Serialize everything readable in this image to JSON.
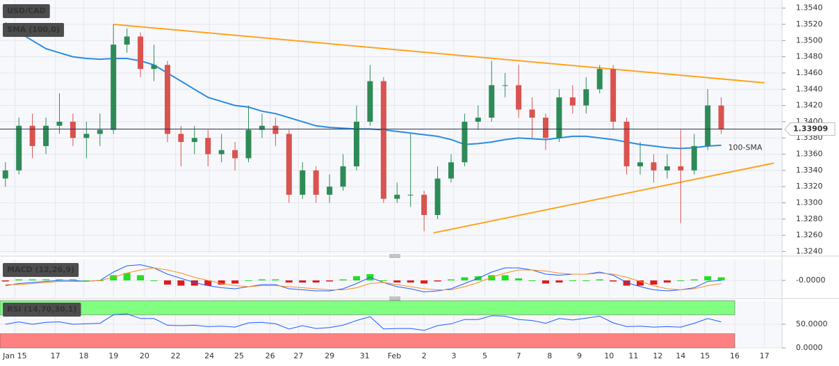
{
  "chart_data": [
    {
      "type": "candlestick",
      "title": "USD/CAD",
      "xlim": [
        -0.4,
        57.5
      ],
      "ylim": [
        1.3237,
        1.355
      ],
      "yticks": [
        {
          "value": 1.324,
          "label": "1.3240"
        },
        {
          "value": 1.326,
          "label": "1.3260"
        },
        {
          "value": 1.328,
          "label": "1.3280"
        },
        {
          "value": 1.33,
          "label": "1.3300"
        },
        {
          "value": 1.332,
          "label": "1.3320"
        },
        {
          "value": 1.334,
          "label": "1.3340"
        },
        {
          "value": 1.336,
          "label": "1.3360"
        },
        {
          "value": 1.338,
          "label": "1.3380"
        },
        {
          "value": 1.34,
          "label": "1.3400"
        },
        {
          "value": 1.342,
          "label": "1.3420"
        },
        {
          "value": 1.344,
          "label": "1.3440"
        },
        {
          "value": 1.346,
          "label": "1.3460"
        },
        {
          "value": 1.348,
          "label": "1.3480"
        },
        {
          "value": 1.35,
          "label": "1.3500"
        },
        {
          "value": 1.352,
          "label": "1.3520"
        },
        {
          "value": 1.354,
          "label": "1.3540"
        }
      ],
      "grid": true,
      "up_color": "#2e8b57",
      "down_color": "#d9534f",
      "open": [
        1.333,
        1.334,
        1.3395,
        1.337,
        1.3395,
        1.34,
        1.338,
        1.3385,
        1.339,
        1.3495,
        1.3505,
        1.3465,
        1.347,
        1.3385,
        1.3375,
        1.338,
        1.336,
        1.3365,
        1.3355,
        1.339,
        1.3395,
        1.3385,
        1.331,
        1.334,
        1.331,
        1.332,
        1.3345,
        1.34,
        1.345,
        1.3305,
        1.331,
        1.331,
        1.3285,
        1.333,
        1.335,
        1.34,
        1.3405,
        1.3445,
        1.3445,
        1.3415,
        1.3405,
        1.338,
        1.343,
        1.342,
        1.344,
        1.3465,
        1.34,
        1.3345,
        1.335,
        1.334,
        1.3345,
        1.334,
        1.337,
        1.342
      ],
      "high": [
        1.335,
        1.3405,
        1.341,
        1.3405,
        1.3435,
        1.341,
        1.34,
        1.341,
        1.352,
        1.3515,
        1.351,
        1.3495,
        1.3475,
        1.3395,
        1.3395,
        1.339,
        1.3385,
        1.3375,
        1.342,
        1.341,
        1.3405,
        1.339,
        1.335,
        1.3345,
        1.3335,
        1.336,
        1.342,
        1.347,
        1.3455,
        1.3325,
        1.3385,
        1.3315,
        1.3345,
        1.336,
        1.341,
        1.342,
        1.3475,
        1.346,
        1.347,
        1.343,
        1.341,
        1.344,
        1.3445,
        1.3455,
        1.347,
        1.347,
        1.3405,
        1.3375,
        1.336,
        1.336,
        1.339,
        1.3385,
        1.344,
        1.343
      ],
      "low": [
        1.332,
        1.3335,
        1.3355,
        1.336,
        1.3385,
        1.337,
        1.3355,
        1.337,
        1.3385,
        1.3485,
        1.3455,
        1.345,
        1.3375,
        1.3345,
        1.336,
        1.3345,
        1.335,
        1.334,
        1.335,
        1.338,
        1.337,
        1.33,
        1.3305,
        1.33,
        1.33,
        1.3315,
        1.334,
        1.3395,
        1.33,
        1.33,
        1.3295,
        1.3265,
        1.328,
        1.3325,
        1.3345,
        1.339,
        1.34,
        1.343,
        1.3405,
        1.338,
        1.3365,
        1.3375,
        1.341,
        1.341,
        1.3435,
        1.339,
        1.3335,
        1.3335,
        1.3325,
        1.333,
        1.3275,
        1.3335,
        1.3365,
        1.3385
      ],
      "close": [
        1.334,
        1.3395,
        1.337,
        1.3395,
        1.34,
        1.338,
        1.3385,
        1.339,
        1.3495,
        1.3505,
        1.3465,
        1.347,
        1.3385,
        1.3375,
        1.338,
        1.336,
        1.3365,
        1.3355,
        1.339,
        1.3395,
        1.3385,
        1.331,
        1.334,
        1.331,
        1.332,
        1.3345,
        1.34,
        1.345,
        1.3305,
        1.331,
        1.331,
        1.3285,
        1.333,
        1.335,
        1.34,
        1.3405,
        1.3445,
        1.3445,
        1.3415,
        1.3405,
        1.338,
        1.343,
        1.342,
        1.344,
        1.3465,
        1.34,
        1.3345,
        1.335,
        1.334,
        1.3345,
        1.334,
        1.337,
        1.342,
        1.3391
      ],
      "sma": {
        "name": "SMA (100,0)",
        "label": "100-SMA",
        "color": "#2a8be0",
        "values": [
          1.3522,
          1.351,
          1.35,
          1.349,
          1.3485,
          1.348,
          1.3478,
          1.3477,
          1.3478,
          1.3478,
          1.3475,
          1.347,
          1.346,
          1.345,
          1.344,
          1.343,
          1.3425,
          1.342,
          1.3418,
          1.3413,
          1.341,
          1.3405,
          1.34,
          1.3395,
          1.3393,
          1.3392,
          1.3391,
          1.3391,
          1.339,
          1.3388,
          1.3386,
          1.3384,
          1.3382,
          1.3378,
          1.3372,
          1.3373,
          1.3375,
          1.3378,
          1.338,
          1.3379,
          1.3378,
          1.338,
          1.3382,
          1.3382,
          1.338,
          1.3378,
          1.3375,
          1.3372,
          1.337,
          1.3368,
          1.3367,
          1.3368,
          1.337,
          1.3371
        ]
      },
      "trendlines": [
        {
          "color": "#ffa31a",
          "x": [
            8,
            56.2
          ],
          "y": [
            1.352,
            1.3448
          ]
        },
        {
          "color": "#ffa31a",
          "x": [
            31.7,
            56.9
          ],
          "y": [
            1.3263,
            1.3349
          ]
        }
      ],
      "last_price": 1.33909
    },
    {
      "type": "macd",
      "title": "MACD (12,26,9)",
      "ylim": [
        -0.0016,
        0.002
      ],
      "yticks": [
        {
          "value": 0,
          "label": "-0.0000"
        }
      ],
      "histogram": {
        "up_color": "#22e022",
        "down_color": "#e01b1b",
        "values": [
          -0.0001,
          0.0001,
          0.0001,
          0.0001,
          0.0001,
          0.0001,
          0,
          0,
          0.0005,
          0.0007,
          0.0005,
          0,
          -0.0004,
          -0.0005,
          -0.0005,
          -0.0005,
          -0.0004,
          -0.0003,
          0,
          0.0001,
          0.0001,
          -0.0002,
          -0.0002,
          -0.0002,
          -0.0001,
          0.0001,
          0.0004,
          0.0006,
          0,
          -0.0002,
          -0.0002,
          -0.0003,
          -0.0001,
          0.0001,
          0.0003,
          0.0004,
          0.0005,
          0.0005,
          0.0002,
          0,
          -0.0003,
          -0.0002,
          0,
          0,
          0.0001,
          -0.0001,
          -0.0005,
          -0.0005,
          -0.0004,
          -0.0002,
          0,
          0.0001,
          0.0004,
          0.0003
        ]
      },
      "lines": [
        {
          "color": "#1e5cff",
          "values": [
            -0.0005,
            -0.0003,
            -0.0002,
            -0.0001,
            0,
            0,
            -0.0001,
            0,
            0.0008,
            0.0014,
            0.0015,
            0.0012,
            0.0006,
            0.0002,
            -0.0002,
            -0.0005,
            -0.0007,
            -0.0008,
            -0.0006,
            -0.0004,
            -0.0004,
            -0.0008,
            -0.0009,
            -0.001,
            -0.001,
            -0.0008,
            -0.0003,
            0.0003,
            -0.0002,
            -0.0006,
            -0.0008,
            -0.0011,
            -0.001,
            -0.0008,
            -0.0003,
            0.0002,
            0.0008,
            0.0012,
            0.0012,
            0.001,
            0.0006,
            0.0005,
            0.0006,
            0.0006,
            0.0008,
            0.0005,
            -0.0002,
            -0.0006,
            -0.0009,
            -0.001,
            -0.0009,
            -0.0007,
            -0.0001,
            0
          ]
        },
        {
          "color": "#ff8a1a",
          "values": [
            -0.0004,
            -0.0004,
            -0.0003,
            -0.0002,
            -0.0001,
            -0.0001,
            -0.0001,
            0,
            0.0003,
            0.0007,
            0.001,
            0.0012,
            0.001,
            0.0007,
            0.0003,
            0,
            -0.0003,
            -0.0005,
            -0.0006,
            -0.0005,
            -0.0005,
            -0.0006,
            -0.0007,
            -0.0008,
            -0.0009,
            -0.0009,
            -0.0007,
            -0.0003,
            -0.0002,
            -0.0004,
            -0.0006,
            -0.0008,
            -0.0009,
            -0.0009,
            -0.0006,
            -0.0002,
            0.0003,
            0.0007,
            0.001,
            0.001,
            0.0009,
            0.0007,
            0.0006,
            0.0006,
            0.0007,
            0.0006,
            0.0003,
            -0.0001,
            -0.0005,
            -0.0008,
            -0.0009,
            -0.0008,
            -0.0005,
            -0.0003
          ]
        }
      ]
    },
    {
      "type": "rsi",
      "title": "RSI (14,70,30,1)",
      "ylim": [
        0,
        100
      ],
      "yticks": [
        {
          "value": 50,
          "label": "50.0000"
        },
        {
          "value": 0,
          "label": "0.0000"
        }
      ],
      "bands": [
        {
          "from": 70,
          "to": 100,
          "color": "#80ff80"
        },
        {
          "from": 0,
          "to": 30,
          "color": "#ff8080"
        }
      ],
      "line": {
        "color": "#1e5cff",
        "values": [
          50,
          55,
          50,
          54,
          55,
          50,
          51,
          52,
          70,
          72,
          62,
          62,
          48,
          47,
          48,
          45,
          46,
          44,
          53,
          54,
          51,
          40,
          47,
          41,
          43,
          48,
          58,
          66,
          40,
          41,
          41,
          37,
          47,
          51,
          60,
          60,
          68,
          67,
          60,
          58,
          52,
          62,
          59,
          63,
          67,
          53,
          45,
          46,
          44,
          45,
          44,
          52,
          62,
          55
        ]
      },
      "xticks": [
        {
          "value": 0.7,
          "label": "Jan 15"
        },
        {
          "value": 3.7,
          "label": "17"
        },
        {
          "value": 5.8,
          "label": "18"
        },
        {
          "value": 8.0,
          "label": "19"
        },
        {
          "value": 10.3,
          "label": "20"
        },
        {
          "value": 12.6,
          "label": "22"
        },
        {
          "value": 15.1,
          "label": "24"
        },
        {
          "value": 17.3,
          "label": "25"
        },
        {
          "value": 19.6,
          "label": "26"
        },
        {
          "value": 21.7,
          "label": "27"
        },
        {
          "value": 24.0,
          "label": "29"
        },
        {
          "value": 26.6,
          "label": "31"
        },
        {
          "value": 28.8,
          "label": "Feb"
        },
        {
          "value": 31.0,
          "label": "2"
        },
        {
          "value": 33.2,
          "label": "3"
        },
        {
          "value": 35.5,
          "label": "5"
        },
        {
          "value": 38.0,
          "label": "7"
        },
        {
          "value": 40.3,
          "label": "8"
        },
        {
          "value": 42.5,
          "label": "9"
        },
        {
          "value": 44.7,
          "label": "10"
        },
        {
          "value": 46.5,
          "label": "11"
        },
        {
          "value": 48.3,
          "label": "12"
        },
        {
          "value": 50.0,
          "label": "14"
        },
        {
          "value": 51.8,
          "label": "15"
        },
        {
          "value": 54.0,
          "label": "16"
        },
        {
          "value": 56.2,
          "label": "17"
        }
      ]
    }
  ]
}
